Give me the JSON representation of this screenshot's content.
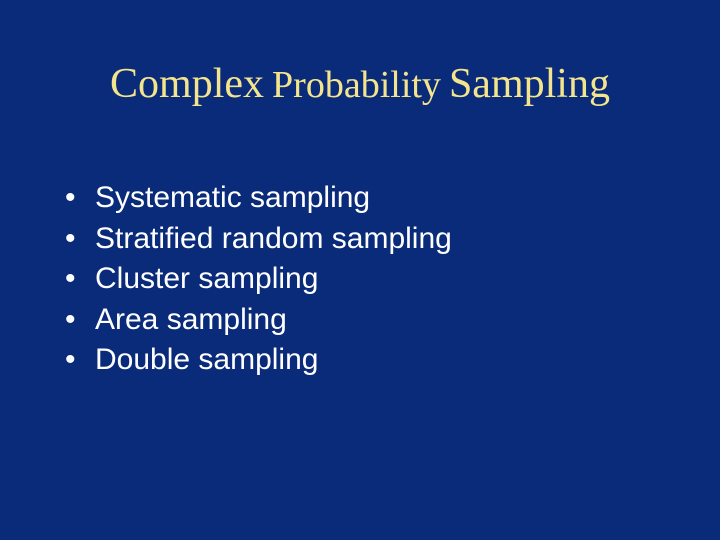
{
  "colors": {
    "background": "#0a2a7a",
    "title": "#f4e58c",
    "body": "#ffffff"
  },
  "title": {
    "w1": "Complex",
    "w2": "Probability",
    "w3": "Sampling",
    "fontsize_w1": 42,
    "fontsize_w2": 38,
    "fontsize_w3": 42
  },
  "bullets": {
    "fontsize": 30,
    "items": [
      "Systematic sampling",
      "Stratified random sampling",
      "Cluster sampling",
      "Area sampling",
      "Double sampling"
    ]
  }
}
